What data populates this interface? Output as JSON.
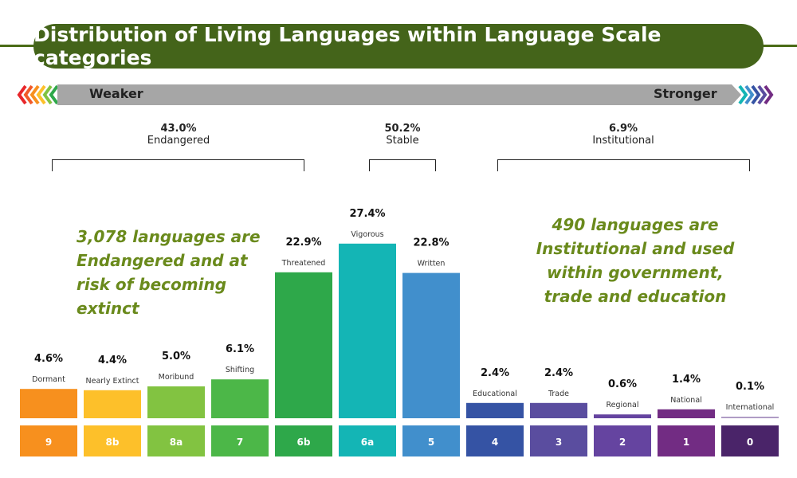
{
  "title": "Distribution of Living Languages within Language Scale categories",
  "scale": {
    "weaker": "Weaker",
    "stronger": "Stronger"
  },
  "groups": [
    {
      "pct": "43.0%",
      "name": "Endangered"
    },
    {
      "pct": "50.2%",
      "name": "Stable"
    },
    {
      "pct": "6.9%",
      "name": "Institutional"
    }
  ],
  "notes": {
    "endangered": "3,078 languages are Endangered and at risk of becoming extinct",
    "institutional": "490 languages are Institutional and used within government, trade and education"
  },
  "chart_data": {
    "type": "bar",
    "categories": [
      "9",
      "8b",
      "8a",
      "7",
      "6b",
      "6a",
      "5",
      "4",
      "3",
      "2",
      "1",
      "0"
    ],
    "category_names": [
      "Dormant",
      "Nearly Extinct",
      "Moribund",
      "Shifting",
      "Threatened",
      "Vigorous",
      "Written",
      "Educational",
      "Trade",
      "Regional",
      "National",
      "International"
    ],
    "values": [
      4.6,
      4.4,
      5.0,
      6.1,
      22.9,
      27.4,
      22.8,
      2.4,
      2.4,
      0.6,
      1.4,
      0.1
    ],
    "labels": [
      "4.6%",
      "4.4%",
      "5.0%",
      "6.1%",
      "22.9%",
      "27.4%",
      "22.8%",
      "2.4%",
      "2.4%",
      "0.6%",
      "1.4%",
      "0.1%"
    ],
    "colors": [
      "#f7901e",
      "#fdc02a",
      "#82c341",
      "#4cb748",
      "#2ea84a",
      "#14b5b5",
      "#418fcc",
      "#3553a4",
      "#5a4d9f",
      "#6544a0",
      "#722c83",
      "#4a2469"
    ],
    "ylim": [
      0,
      30
    ],
    "grid": false
  }
}
